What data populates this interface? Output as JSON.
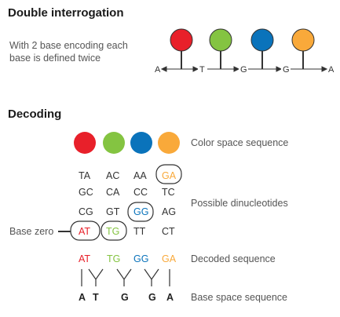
{
  "colors": {
    "red": "#e8202a",
    "green": "#84c441",
    "blue": "#0a73bb",
    "orange": "#f9a93a",
    "dark": "#333333"
  },
  "section1": {
    "title": "Double interrogation",
    "description_line1": "With 2 base encoding each",
    "description_line2": "base is defined twice",
    "axis_bases": [
      "A",
      "T",
      "G",
      "G",
      "A"
    ]
  },
  "section2": {
    "title": "Decoding",
    "color_space_label": "Color space sequence",
    "dinucleotides": [
      [
        "TA",
        "AC",
        "AA",
        "GA"
      ],
      [
        "GC",
        "CA",
        "CC",
        "TC"
      ],
      [
        "CG",
        "GT",
        "GG",
        "AG"
      ],
      [
        "AT",
        "TG",
        "TT",
        "CT"
      ]
    ],
    "possible_label": "Possible dinucleotides",
    "base_zero_label": "Base zero",
    "decoded": [
      "AT",
      "TG",
      "GG",
      "GA"
    ],
    "decoded_label": "Decoded sequence",
    "base_space": [
      "A",
      "T",
      "G",
      "G",
      "A"
    ],
    "base_space_label": "Base space sequence"
  }
}
